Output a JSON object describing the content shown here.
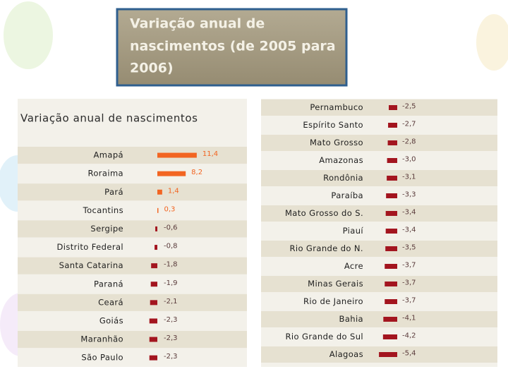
{
  "heading": {
    "lines": [
      "Variação anual de",
      "nascimentos (de 2005 para",
      "2006)"
    ]
  },
  "chart_data": [
    {
      "type": "bar",
      "orientation": "horizontal",
      "title": "Variação anual de nascimentos",
      "categories": [
        "Amapá",
        "Roraima",
        "Pará",
        "Tocantins",
        "Sergipe",
        "Distrito Federal",
        "Santa Catarina",
        "Paraná",
        "Ceará",
        "Goiás",
        "Maranhão",
        "São Paulo"
      ],
      "values": [
        11.4,
        8.2,
        1.4,
        0.3,
        -0.6,
        -0.8,
        -1.8,
        -1.9,
        -2.1,
        -2.3,
        -2.3,
        -2.3
      ],
      "value_labels": [
        "11,4",
        "8,2",
        "1,4",
        "0,3",
        "-0,6",
        "-0,8",
        "-1,8",
        "-1,9",
        "-2,1",
        "-2,3",
        "-2,3",
        "-2,3"
      ],
      "positive_color": "#f26522",
      "negative_color": "#a3151f"
    },
    {
      "type": "bar",
      "orientation": "horizontal",
      "categories": [
        "Pernambuco",
        "Espírito Santo",
        "Mato Grosso",
        "Amazonas",
        "Rondônia",
        "Paraíba",
        "Mato Grosso do S.",
        "Piauí",
        "Rio Grande do N.",
        "Acre",
        "Minas Gerais",
        "Rio de Janeiro",
        "Bahia",
        "Rio Grande do Sul",
        "Alagoas"
      ],
      "values": [
        -2.5,
        -2.7,
        -2.8,
        -3.0,
        -3.1,
        -3.3,
        -3.4,
        -3.4,
        -3.5,
        -3.7,
        -3.7,
        -3.7,
        -4.1,
        -4.2,
        -5.4
      ],
      "value_labels": [
        "-2,5",
        "-2,7",
        "-2,8",
        "-3,0",
        "-3,1",
        "-3,3",
        "-3,4",
        "-3,4",
        "-3,5",
        "-3,7",
        "-3,7",
        "-3,7",
        "-4,1",
        "-4,2",
        "-5,4"
      ],
      "positive_color": "#f26522",
      "negative_color": "#a3151f"
    }
  ]
}
